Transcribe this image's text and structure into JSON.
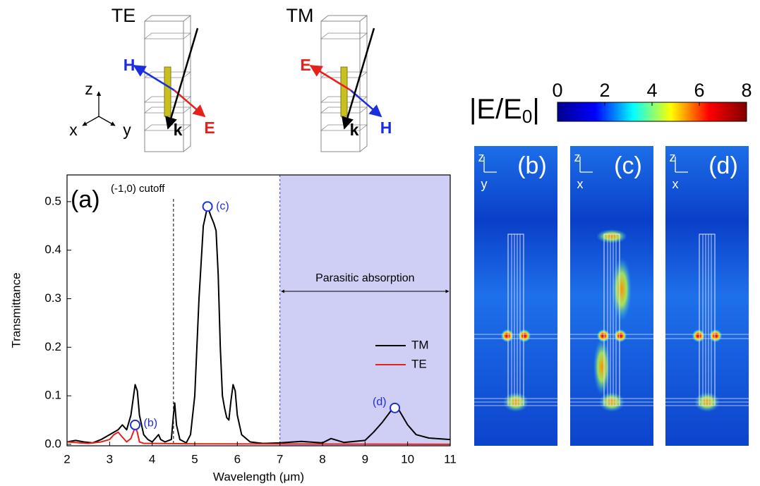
{
  "chart_data": {
    "type": "line",
    "panel_label": "(a)",
    "xlabel": "Wavelength (μm)",
    "ylabel": "Transmittance",
    "xlim": [
      2,
      11
    ],
    "xticks": [
      2,
      3,
      4,
      5,
      6,
      7,
      8,
      9,
      10,
      11
    ],
    "ylim": [
      -0.003,
      0.555
    ],
    "yticks": [
      {
        "value": 0,
        "label": "0.0"
      },
      0.1,
      0.2,
      0.3,
      0.4,
      0.5
    ],
    "series": [
      {
        "name": "TM",
        "color": "#000000",
        "x": [
          2.0,
          2.2,
          2.4,
          2.6,
          2.8,
          3.0,
          3.2,
          3.3,
          3.4,
          3.5,
          3.6,
          3.65,
          3.7,
          3.8,
          3.9,
          4.0,
          4.1,
          4.15,
          4.2,
          4.3,
          4.45,
          4.5,
          4.53,
          4.57,
          4.65,
          4.8,
          4.9,
          5.0,
          5.1,
          5.2,
          5.3,
          5.38,
          5.45,
          5.5,
          5.55,
          5.6,
          5.65,
          5.7,
          5.75,
          5.8,
          5.85,
          5.9,
          5.95,
          6.0,
          6.1,
          6.3,
          6.6,
          7.0,
          7.5,
          8.0,
          8.2,
          8.5,
          9.0,
          9.2,
          9.4,
          9.6,
          9.7,
          9.8,
          10.0,
          10.2,
          10.5,
          11.0
        ],
        "values": [
          0.005,
          0.008,
          0.005,
          0.003,
          0.01,
          0.02,
          0.03,
          0.04,
          0.03,
          0.06,
          0.123,
          0.11,
          0.06,
          0.02,
          0.01,
          0.005,
          0.015,
          0.02,
          0.01,
          0.005,
          0.01,
          0.06,
          0.085,
          0.04,
          0.01,
          0.003,
          0.02,
          0.1,
          0.3,
          0.45,
          0.49,
          0.47,
          0.455,
          0.44,
          0.35,
          0.2,
          0.1,
          0.075,
          0.055,
          0.05,
          0.09,
          0.123,
          0.11,
          0.06,
          0.02,
          0.005,
          0.002,
          0.003,
          0.006,
          0.003,
          0.012,
          0.004,
          0.008,
          0.025,
          0.045,
          0.068,
          0.078,
          0.07,
          0.04,
          0.02,
          0.013,
          0.01
        ]
      },
      {
        "name": "TE",
        "color": "#e8201c",
        "x": [
          2.0,
          2.5,
          2.8,
          3.0,
          3.1,
          3.2,
          3.3,
          3.4,
          3.5,
          3.6,
          3.65,
          3.7,
          3.8,
          4.0,
          5.0,
          11.0
        ],
        "values": [
          0.005,
          0.002,
          0.005,
          0.01,
          0.02,
          0.025,
          0.015,
          0.005,
          0.012,
          0.035,
          0.025,
          0.005,
          0.002,
          0.002,
          0.001,
          0.0
        ]
      }
    ],
    "markers": [
      {
        "label": "(b)",
        "x": 3.6,
        "y": 0.04
      },
      {
        "label": "(c)",
        "x": 5.3,
        "y": 0.49
      },
      {
        "label": "(d)",
        "x": 9.7,
        "y": 0.075
      }
    ],
    "marker_color": "#1f2fe0",
    "cutoff": {
      "x": 4.5,
      "label": "(-1,0) cutoff"
    },
    "shaded_region": {
      "xlim": [
        7,
        11
      ],
      "label": "Parasitic absorption",
      "color": "#cfcff6"
    }
  },
  "diagrams": [
    {
      "title": "TE",
      "labels": [
        "H",
        "E",
        "k"
      ]
    },
    {
      "title": "TM",
      "labels": [
        "E",
        "H",
        "k"
      ]
    }
  ],
  "axes_triad": [
    "z",
    "x",
    "y"
  ],
  "colorbar": {
    "label": "|E/E",
    "label_sub": "0",
    "label_close": "|",
    "lim": [
      0,
      8
    ],
    "ticks": [
      0,
      2,
      4,
      6,
      8
    ],
    "colormap": [
      "#00008f",
      "#0000ff",
      "#00ffff",
      "#ffff00",
      "#ff0000",
      "#800000"
    ]
  },
  "field_maps": [
    {
      "label": "(b)",
      "axes": [
        "z",
        "y"
      ]
    },
    {
      "label": "(c)",
      "axes": [
        "z",
        "x"
      ]
    },
    {
      "label": "(d)",
      "axes": [
        "z",
        "x"
      ]
    }
  ]
}
